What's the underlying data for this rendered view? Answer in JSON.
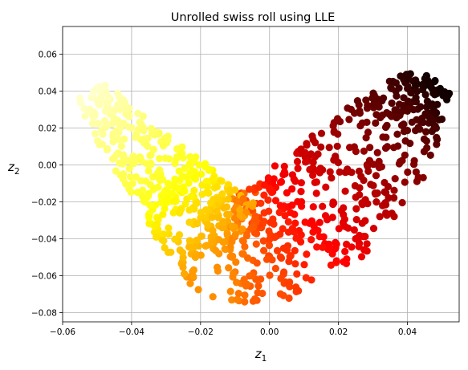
{
  "chart_data": {
    "type": "scatter",
    "title": "Unrolled swiss roll using LLE",
    "xlabel": {
      "base": "z",
      "sub": "1"
    },
    "ylabel": {
      "base": "z",
      "sub": "2"
    },
    "xlim": [
      -0.06,
      0.055
    ],
    "ylim": [
      -0.085,
      0.075
    ],
    "xticks": [
      -0.06,
      -0.04,
      -0.02,
      0.0,
      0.02,
      0.04
    ],
    "yticks": [
      -0.08,
      -0.06,
      -0.04,
      -0.02,
      0.0,
      0.02,
      0.04,
      0.06
    ],
    "grid": true,
    "colormap": "hot",
    "points_estimated": 1000,
    "band_centerline": [
      {
        "t": 0.0,
        "x": 0.048,
        "y": 0.045
      },
      {
        "t": 0.1,
        "x": 0.04,
        "y": 0.03
      },
      {
        "t": 0.2,
        "x": 0.03,
        "y": 0.005
      },
      {
        "t": 0.3,
        "x": 0.02,
        "y": -0.015
      },
      {
        "t": 0.4,
        "x": 0.008,
        "y": -0.035
      },
      {
        "t": 0.5,
        "x": -0.003,
        "y": -0.045
      },
      {
        "t": 0.6,
        "x": -0.012,
        "y": -0.045
      },
      {
        "t": 0.7,
        "x": -0.02,
        "y": -0.03
      },
      {
        "t": 0.8,
        "x": -0.028,
        "y": -0.012
      },
      {
        "t": 0.9,
        "x": -0.04,
        "y": 0.012
      },
      {
        "t": 1.0,
        "x": -0.052,
        "y": 0.04
      }
    ],
    "band_halfwidth": [
      {
        "t": 0.0,
        "w": 0.01
      },
      {
        "t": 0.15,
        "w": 0.028
      },
      {
        "t": 0.35,
        "w": 0.035
      },
      {
        "t": 0.55,
        "w": 0.03
      },
      {
        "t": 0.75,
        "w": 0.024
      },
      {
        "t": 0.9,
        "w": 0.016
      },
      {
        "t": 1.0,
        "w": 0.01
      }
    ]
  }
}
